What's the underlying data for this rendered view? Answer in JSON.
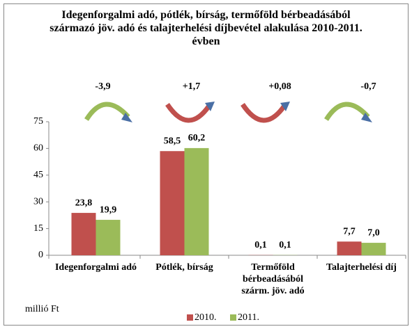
{
  "chart_data": {
    "type": "bar",
    "title": "Idegenforgalmi adó, pótlék, bírság, termőföld bérbeadásából származó jöv. adó és talajterhelési díjbevétel alakulása 2010-2011. évben",
    "y_label": "millió Ft",
    "categories": [
      "Idegenforgalmi adó",
      "Pótlék, bírság",
      "Termőföld bérbeadásából szárm. jöv. adó",
      "Talajterhelési díj"
    ],
    "annotations": [
      "-3,9",
      "+1,7",
      "+0,08",
      "-0,7"
    ],
    "series": [
      {
        "name": "2010.",
        "color": "#c0504d",
        "values": [
          23.8,
          58.5,
          0.1,
          7.7
        ],
        "value_labels": [
          "23,8",
          "58,5",
          "0,1",
          "7,7"
        ]
      },
      {
        "name": "2011.",
        "color": "#9bbb59",
        "values": [
          19.9,
          60.2,
          0.1,
          7.0
        ],
        "value_labels": [
          "19,9",
          "60,2",
          "0,1",
          "7,0"
        ]
      }
    ],
    "ylim": [
      0,
      75
    ],
    "yticks": [
      0,
      15,
      30,
      45,
      60,
      75
    ],
    "grid": false,
    "legend": "bottom"
  }
}
